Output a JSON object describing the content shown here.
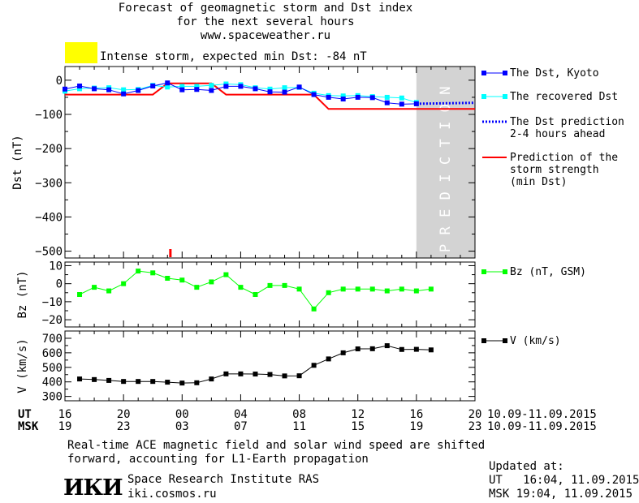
{
  "header": {
    "title_lines": [
      "Forecast of geomagnetic storm and Dst index",
      "for the next several hours",
      "www.spaceweather.ru"
    ],
    "storm_label": "Intense storm, expected min Dst: -84 nT",
    "storm_color": "#ffff00"
  },
  "colors": {
    "dst_kyoto": "#0000ff",
    "dst_recovered": "#00ffff",
    "dst_prediction": "#0000ff",
    "storm_strength": "#ff0000",
    "bz": "#00ff00",
    "v": "#000000",
    "prediction_band": "#d3d3d3"
  },
  "chart_data": [
    {
      "type": "line",
      "id": "dst",
      "ylabel": "Dst (nT)",
      "ylim": [
        -520,
        40
      ],
      "yticks": [
        0,
        -100,
        -200,
        -300,
        -400,
        -500
      ],
      "xlim": [
        0,
        28
      ],
      "shaded_label": "PREDICTION",
      "shaded_range": [
        24,
        28
      ],
      "series": [
        {
          "name": "The Dst, Kyoto",
          "x": [
            0,
            1,
            2,
            3,
            4,
            5,
            6,
            7,
            8,
            9,
            10,
            11,
            12,
            13,
            14,
            15,
            16,
            17,
            18,
            19,
            20,
            21,
            22,
            23,
            24
          ],
          "y": [
            -26,
            -17,
            -25,
            -28,
            -40,
            -30,
            -17,
            -8,
            -28,
            -27,
            -30,
            -18,
            -18,
            -25,
            -34,
            -35,
            -20,
            -42,
            -50,
            -55,
            -50,
            -51,
            -66,
            -70,
            -69
          ]
        },
        {
          "name": "The recovered Dst",
          "x": [
            0,
            1,
            2,
            3,
            4,
            5,
            6,
            7,
            8,
            9,
            10,
            11,
            12,
            13,
            14,
            15,
            16,
            17,
            18,
            19,
            20,
            21,
            22,
            23,
            24
          ],
          "y": [
            -32,
            -25,
            -23,
            -22,
            -28,
            -27,
            -15,
            -20,
            -18,
            -18,
            -15,
            -11,
            -13,
            -22,
            -26,
            -22,
            -21,
            -38,
            -45,
            -46,
            -45,
            -48,
            -50,
            -52,
            -65
          ]
        },
        {
          "name": "The Dst prediction 2-4 hours ahead",
          "x": [
            24,
            28
          ],
          "y": [
            -69,
            -66
          ]
        },
        {
          "name": "Prediction of the storm strength (min Dst)",
          "x": [
            0,
            6,
            7,
            10,
            11,
            16,
            17,
            18,
            30
          ],
          "y": [
            -42,
            -42,
            -9,
            -9,
            -42,
            -42,
            -42,
            -84,
            -84
          ]
        }
      ],
      "marker_x": 7.2
    },
    {
      "type": "line",
      "id": "bz",
      "ylabel": "Bz (nT)",
      "ylim": [
        -24,
        12
      ],
      "yticks": [
        10,
        0,
        -10,
        -20
      ],
      "series": [
        {
          "name": "Bz (nT, GSM)",
          "x": [
            1,
            2,
            3,
            4,
            5,
            6,
            7,
            8,
            9,
            10,
            11,
            12,
            13,
            14,
            15,
            16,
            17,
            18,
            19,
            20,
            21,
            22,
            23,
            24,
            25
          ],
          "y": [
            -6,
            -2,
            -4,
            0,
            7,
            6,
            3,
            2,
            -2,
            1,
            5,
            -2,
            -6,
            -1,
            -1,
            -3,
            -14,
            -5,
            -3,
            -3,
            -3,
            -4,
            -3,
            -4,
            -3
          ]
        }
      ]
    },
    {
      "type": "line",
      "id": "v",
      "ylabel": "V (km/s)",
      "ylim": [
        270,
        750
      ],
      "yticks": [
        700,
        600,
        500,
        400,
        300
      ],
      "series": [
        {
          "name": "V (km/s)",
          "x": [
            1,
            2,
            3,
            4,
            5,
            6,
            7,
            8,
            9,
            10,
            11,
            12,
            13,
            14,
            15,
            16,
            17,
            18,
            19,
            20,
            21,
            22,
            23,
            24,
            25
          ],
          "y": [
            420,
            416,
            410,
            403,
            403,
            403,
            398,
            392,
            394,
            420,
            455,
            455,
            454,
            451,
            441,
            442,
            514,
            558,
            600,
            627,
            628,
            649,
            623,
            624,
            620
          ]
        }
      ]
    }
  ],
  "time_axis": {
    "ut_label": "UT",
    "msk_label": "MSK",
    "ut_ticks": [
      "16",
      "20",
      "00",
      "04",
      "08",
      "12",
      "16",
      "20"
    ],
    "msk_ticks": [
      "19",
      "23",
      "03",
      "07",
      "11",
      "15",
      "19",
      "23"
    ],
    "tick_hours": [
      0,
      4,
      8,
      12,
      16,
      20,
      24,
      28
    ],
    "date_range": "10.09-11.09.2015"
  },
  "footer": {
    "note_line1": "Real-time ACE magnetic field and solar wind speed are shifted",
    "note_line2": "forward, accounting for L1-Earth propagation",
    "institute_logo": "ИКИ",
    "institute_name": "Space Research Institute RAS",
    "institute_url": "iki.cosmos.ru",
    "updated_label": "Updated at:",
    "updated_ut": "UT   16:04, 11.09.2015",
    "updated_msk": "MSK 19:04, 11.09.2015"
  }
}
